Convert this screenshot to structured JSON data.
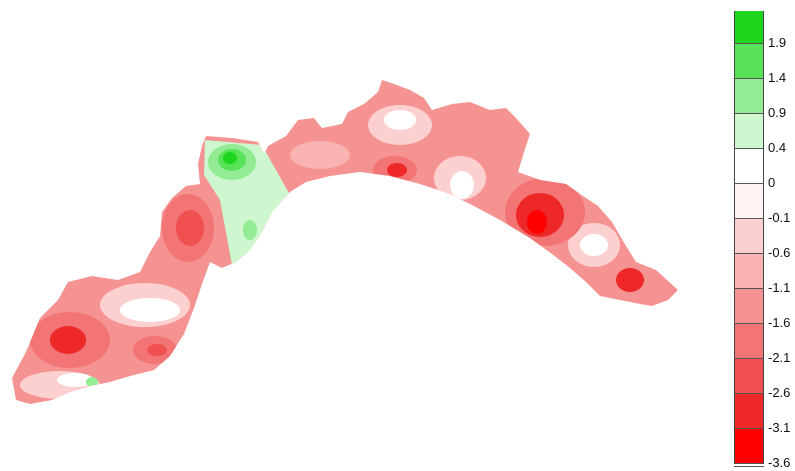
{
  "legend": {
    "entries": [
      {
        "label": "1.9",
        "color": "#1fd61f"
      },
      {
        "label": "1.4",
        "color": "#57e257"
      },
      {
        "label": "0.9",
        "color": "#93ec93"
      },
      {
        "label": "0.4",
        "color": "#cff7cf"
      },
      {
        "label": "0",
        "color": "#ffffff"
      },
      {
        "label": "-0.1",
        "color": "#fff2f2"
      },
      {
        "label": "-0.6",
        "color": "#fdd0d0"
      },
      {
        "label": "-1.1",
        "color": "#f9b3b3"
      },
      {
        "label": "-1.6",
        "color": "#f59393"
      },
      {
        "label": "-2.1",
        "color": "#f27474"
      },
      {
        "label": "-2.6",
        "color": "#f05050"
      },
      {
        "label": "-3.1",
        "color": "#ee2828"
      },
      {
        "label": "-3.6",
        "color": "#ff0000"
      }
    ],
    "top_color": "#1fd61f",
    "bottom_color": "#ff0000"
  },
  "map": {
    "region_base_color": "#f59393",
    "boundary_color": "#f59393"
  }
}
